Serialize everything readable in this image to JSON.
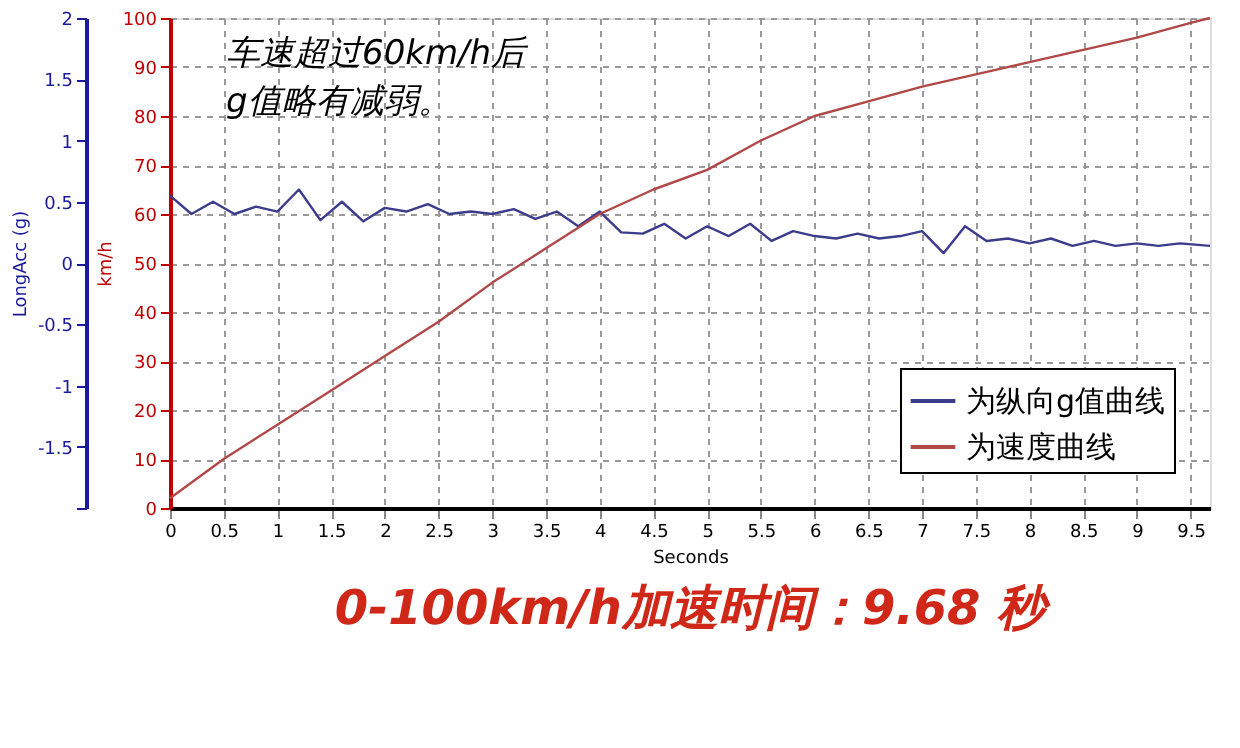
{
  "chart_data": {
    "type": "line",
    "xlabel": "Seconds",
    "ylabel": "LongAcc (g)",
    "y2label": "km/h",
    "annotations": [
      "车速超过60km/h后\ng值略有减弱。",
      "0-100km/h加速时间：9.68 秒"
    ],
    "xlim": [
      0,
      9.68
    ],
    "xticks": [
      0,
      0.5,
      1,
      1.5,
      2,
      2.5,
      3,
      3.5,
      4,
      4.5,
      5,
      5.5,
      6,
      6.5,
      7,
      7.5,
      8,
      8.5,
      9,
      9.5
    ],
    "ylim": [
      -2,
      2
    ],
    "yticks": [
      {
        "value": -2,
        "label": null
      },
      -1.5,
      -1,
      -0.5,
      0,
      0.5,
      1,
      1.5,
      2
    ],
    "y2lim": [
      0,
      100
    ],
    "y2ticks": [
      0,
      10,
      20,
      30,
      40,
      50,
      60,
      70,
      80,
      90,
      100
    ],
    "grid": true,
    "legend": "bottom right",
    "line_style": "solid",
    "marker": "none",
    "series": [
      {
        "name": "为纵向g值曲线",
        "color": "#3c3c8c",
        "x": [
          0,
          0.2,
          0.4,
          0.6,
          0.8,
          1.0,
          1.2,
          1.4,
          1.6,
          1.8,
          2.0,
          2.2,
          2.4,
          2.6,
          2.8,
          3.0,
          3.2,
          3.4,
          3.6,
          3.8,
          4.0,
          4.2,
          4.4,
          4.6,
          4.8,
          5.0,
          5.2,
          5.4,
          5.6,
          5.8,
          6.0,
          6.2,
          6.4,
          6.6,
          6.8,
          7.0,
          7.2,
          7.4,
          7.6,
          7.8,
          8.0,
          8.2,
          8.4,
          8.6,
          8.8,
          9.0,
          9.2,
          9.4,
          9.68
        ],
        "values": [
          0.55,
          0.4,
          0.5,
          0.4,
          0.46,
          0.42,
          0.6,
          0.35,
          0.5,
          0.34,
          0.45,
          0.42,
          0.48,
          0.4,
          0.42,
          0.4,
          0.44,
          0.36,
          0.42,
          0.3,
          0.42,
          0.25,
          0.24,
          0.32,
          0.2,
          0.3,
          0.22,
          0.32,
          0.18,
          0.26,
          0.22,
          0.2,
          0.24,
          0.2,
          0.22,
          0.26,
          0.08,
          0.3,
          0.18,
          0.2,
          0.16,
          0.2,
          0.14,
          0.18,
          0.14,
          0.16,
          0.14,
          0.16,
          0.14
        ]
      },
      {
        "name": "为速度曲线",
        "color": "#b04848",
        "axis": "y2",
        "x": [
          0,
          0.5,
          1,
          1.5,
          2,
          2.5,
          3,
          3.5,
          4,
          4.5,
          5,
          5.5,
          6,
          6.5,
          7,
          7.5,
          8,
          8.5,
          9,
          9.5,
          9.68
        ],
        "values": [
          2,
          10,
          17,
          24,
          31,
          38,
          46,
          53,
          60,
          65,
          69,
          75,
          80,
          83,
          86,
          88.5,
          91,
          93.5,
          96,
          99,
          100
        ]
      }
    ]
  }
}
